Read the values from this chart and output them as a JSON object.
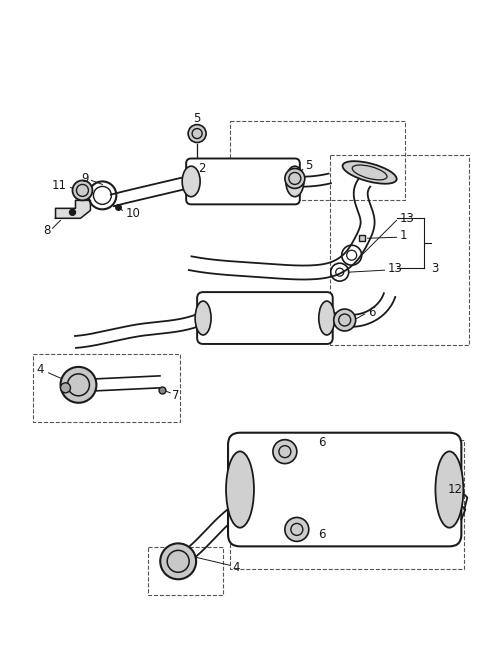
{
  "bg_color": "#ffffff",
  "line_color": "#1a1a1a",
  "label_color": "#1a1a1a",
  "fig_width": 4.8,
  "fig_height": 6.55,
  "dpi": 100
}
